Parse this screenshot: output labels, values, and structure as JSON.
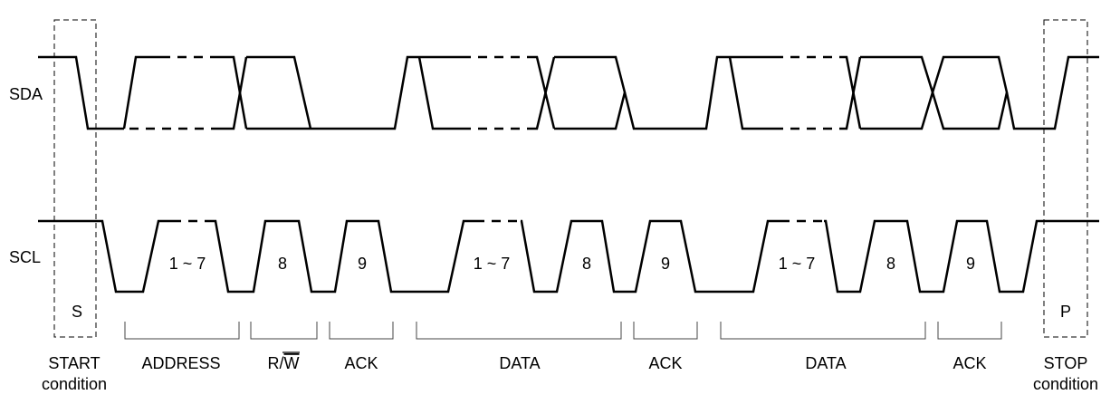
{
  "signals": {
    "sda": "SDA",
    "scl": "SCL"
  },
  "scl_bits": {
    "addr_bits": "1 ~ 7",
    "addr_rw_bit": "8",
    "addr_ack_bit": "9",
    "data1_bits": "1 ~ 7",
    "data1_bit8": "8",
    "data1_ack_bit": "9",
    "data2_bits": "1 ~ 7",
    "data2_bit8": "8",
    "data2_ack_bit": "9"
  },
  "conditions": {
    "start_symbol": "S",
    "stop_symbol": "P",
    "start_line1": "START",
    "start_line2": "condition",
    "stop_line1": "STOP",
    "stop_line2": "condition"
  },
  "phases": {
    "address": "ADDRESS",
    "rw_r": "R/",
    "rw_w": "W",
    "ack1": "ACK",
    "data1": "DATA",
    "ack2": "ACK",
    "data2": "DATA",
    "ack3": "ACK"
  }
}
